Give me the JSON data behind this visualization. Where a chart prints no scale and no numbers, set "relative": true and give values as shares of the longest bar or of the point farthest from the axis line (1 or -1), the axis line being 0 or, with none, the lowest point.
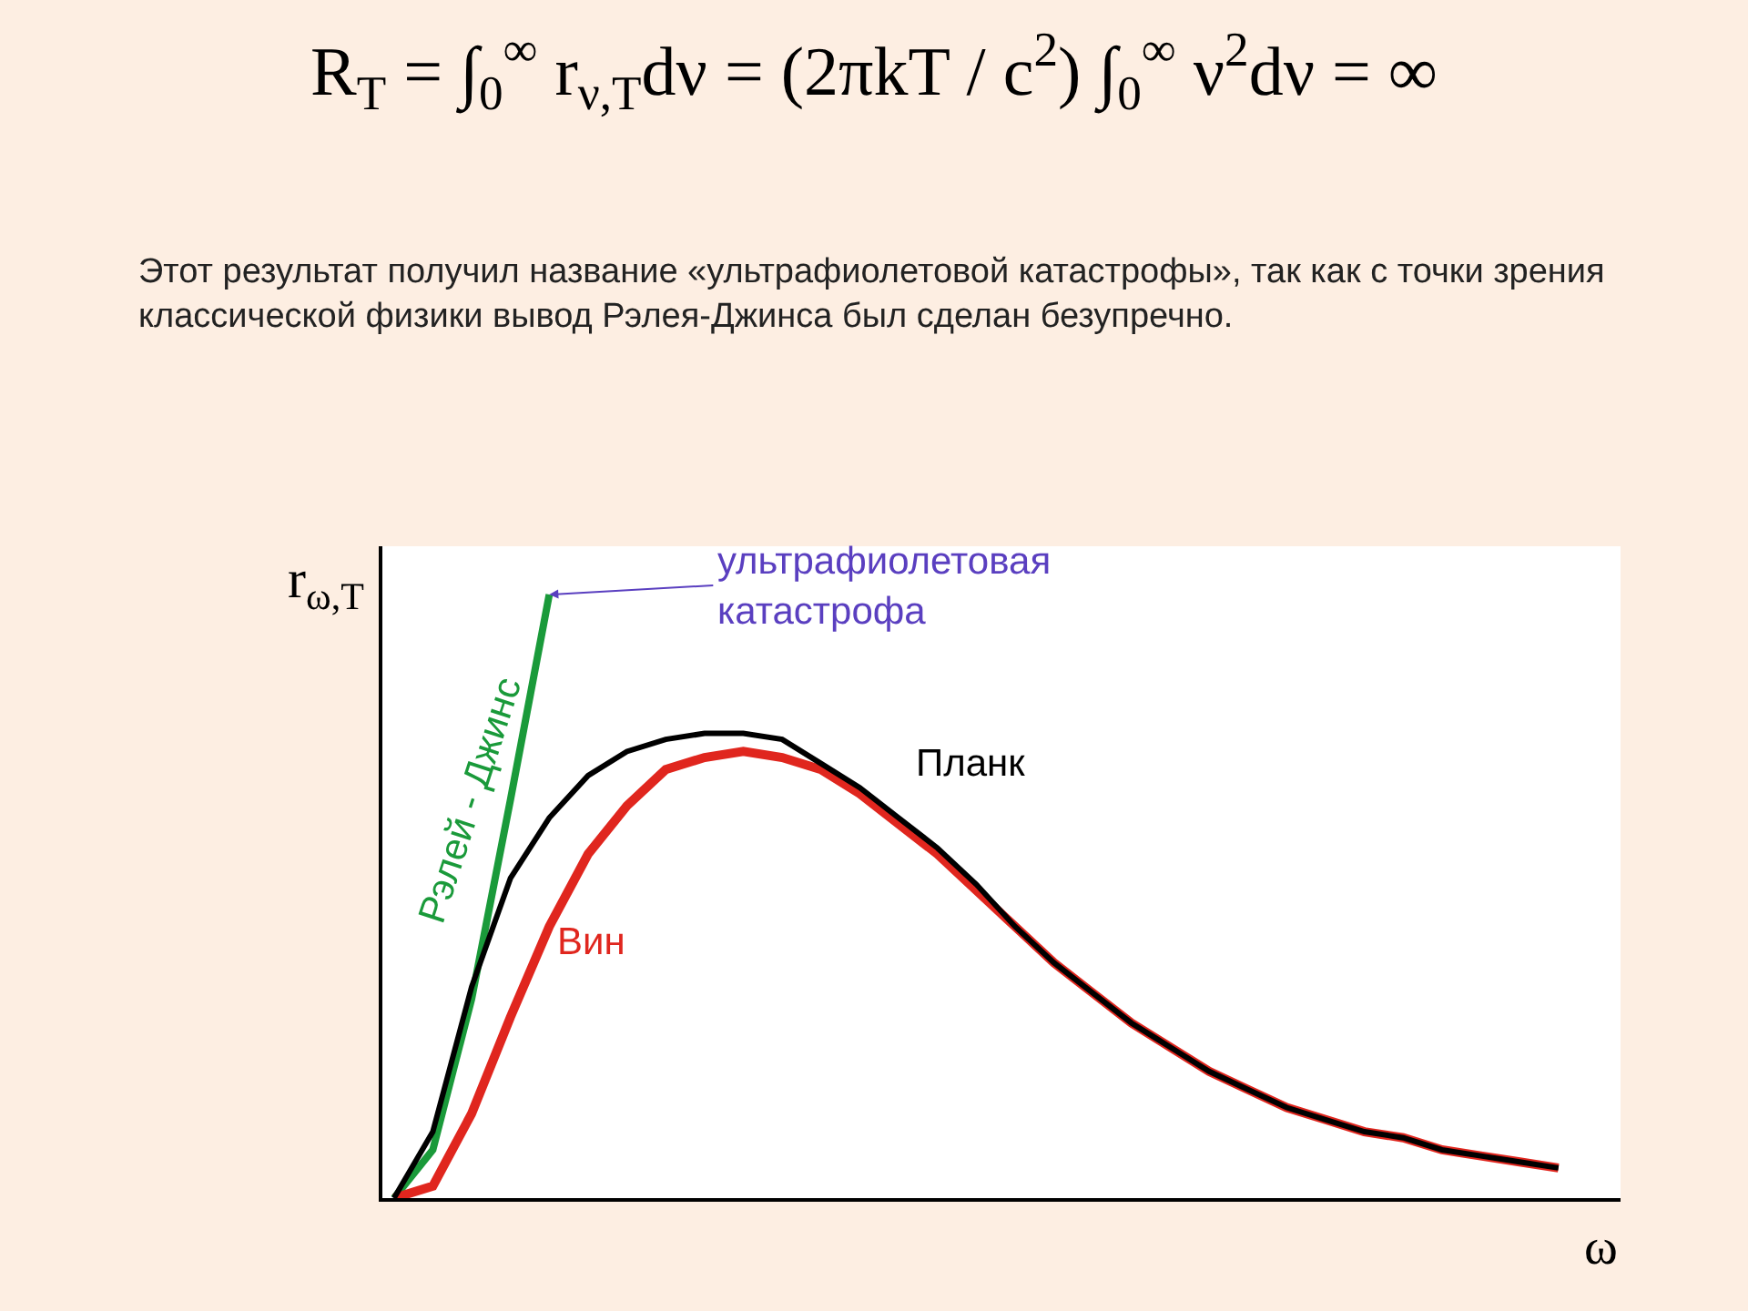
{
  "chart_data": {
    "type": "line",
    "relative": true,
    "title": "R$_{T}$ = ∫$_{0}$$^{∞}$ r$_{ν,T}$dν = (2πkT / c$^{2}$) ∫$_{0}$$^{∞}$ ν$^{2}$dν = ∞",
    "subtitle": "Этот результат получил название «ультрафиолетовой катастрофы», так как с точки зрения классической физики вывод Рэлея-Джинса был сделан безупречно.",
    "xlabel": "ω",
    "ylabel": "r$_{ω,T}$",
    "legend": false,
    "line_style": "solid",
    "marker": "none",
    "annotations": [
      "ультрафиолетовая катастрофа"
    ],
    "categories": [
      null,
      null,
      null,
      null,
      null,
      null,
      null,
      null,
      null,
      null,
      null,
      null,
      null,
      null,
      null,
      null,
      null,
      null,
      null,
      null,
      null,
      null,
      null,
      null,
      null,
      null,
      null,
      null,
      null,
      null,
      null
    ],
    "series": [
      {
        "name": "Рэлей - Джинс",
        "color": "#1a9a3a",
        "values": [
          0,
          0.08,
          0.33,
          0.66,
          1.0,
          null,
          null,
          null,
          null,
          null,
          null,
          null,
          null,
          null,
          null,
          null,
          null,
          null,
          null,
          null,
          null,
          null,
          null,
          null,
          null,
          null,
          null,
          null,
          null,
          null,
          null
        ]
      },
      {
        "name": "Планк",
        "color": "#000000",
        "values": [
          0,
          0.11,
          0.35,
          0.53,
          0.63,
          0.7,
          0.74,
          0.76,
          0.77,
          0.77,
          0.76,
          0.72,
          0.68,
          0.63,
          0.58,
          0.52,
          0.45,
          0.39,
          0.34,
          0.29,
          0.25,
          0.21,
          0.18,
          0.15,
          0.13,
          0.11,
          0.1,
          0.08,
          0.07,
          0.06,
          0.05
        ]
      },
      {
        "name": "Вин",
        "color": "#e0261e",
        "values": [
          0,
          0.02,
          0.14,
          0.3,
          0.45,
          0.57,
          0.65,
          0.71,
          0.73,
          0.74,
          0.73,
          0.71,
          0.67,
          0.62,
          0.57,
          0.51,
          0.45,
          0.39,
          0.34,
          0.29,
          0.25,
          0.21,
          0.18,
          0.15,
          0.13,
          0.11,
          0.1,
          0.08,
          0.07,
          0.06,
          0.05
        ]
      }
    ]
  }
}
